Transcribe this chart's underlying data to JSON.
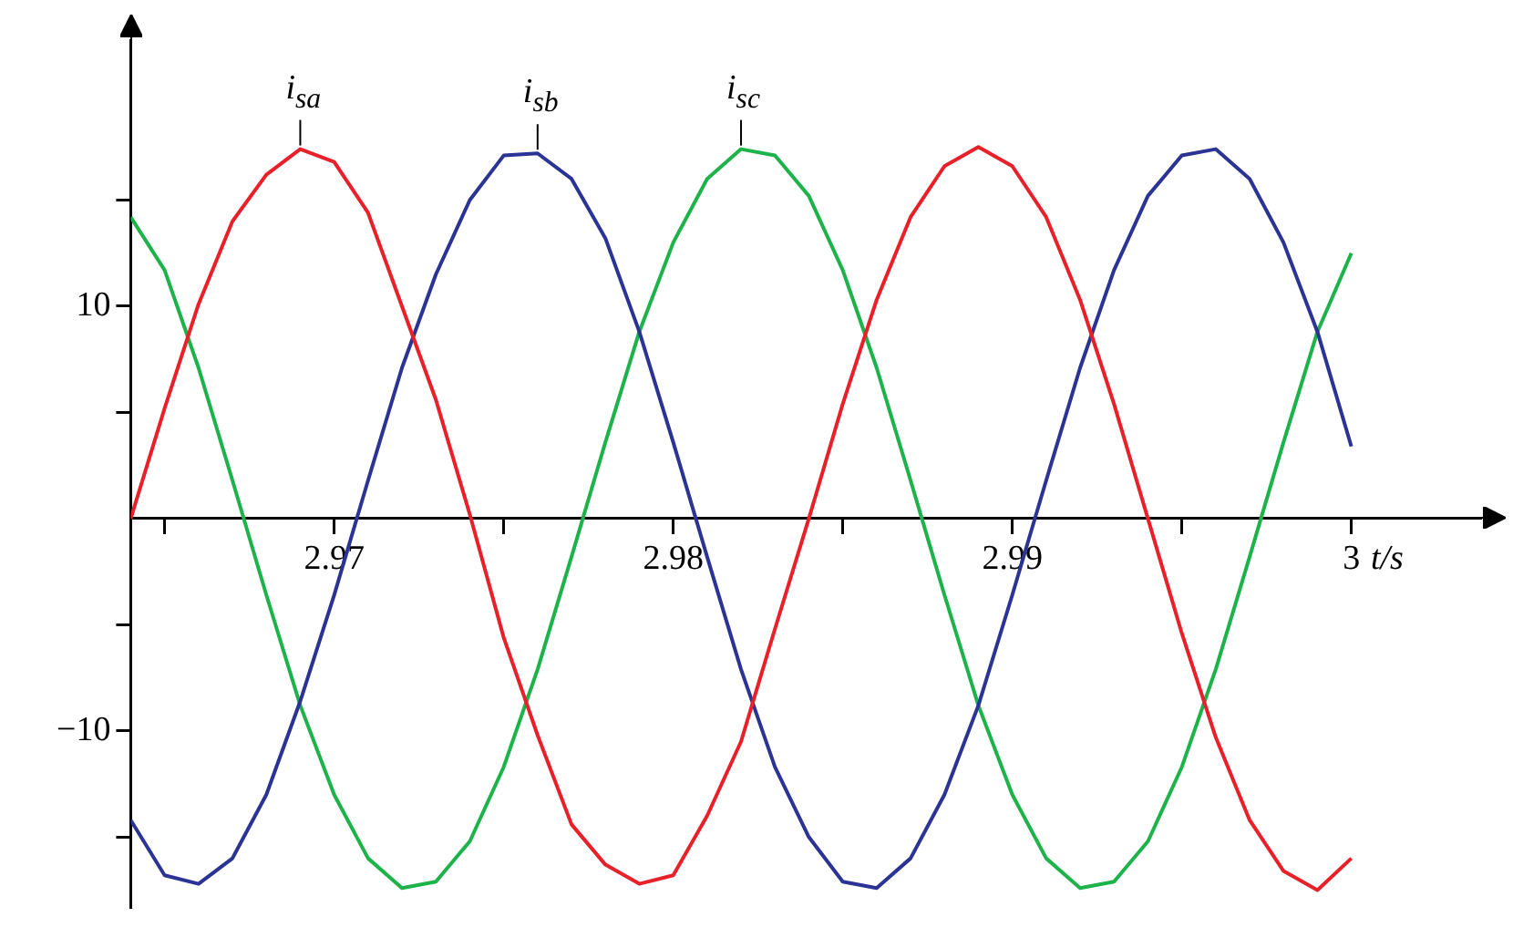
{
  "chart_data": {
    "type": "line",
    "xlabel": "t/s",
    "x": [
      2.964,
      2.965,
      2.966,
      2.967,
      2.968,
      2.969,
      2.97,
      2.971,
      2.972,
      2.973,
      2.974,
      2.975,
      2.976,
      2.977,
      2.978,
      2.979,
      2.98,
      2.981,
      2.982,
      2.983,
      2.984,
      2.985,
      2.986,
      2.987,
      2.988,
      2.989,
      2.99,
      2.991,
      2.992,
      2.993,
      2.994,
      2.995,
      2.996,
      2.997,
      2.998,
      2.999,
      3.0
    ],
    "series": [
      {
        "name": "i$_{sa}$",
        "color": "#e8202a",
        "values": [
          0,
          5.2,
          10.1,
          14.0,
          16.2,
          17.4,
          16.8,
          14.4,
          10.0,
          5.6,
          0.2,
          -5.6,
          -10.2,
          -14.4,
          -16.3,
          -17.2,
          -16.8,
          -14.0,
          -10.5,
          -5.2,
          0,
          5.4,
          10.3,
          14.2,
          16.6,
          17.5,
          16.6,
          14.2,
          10.3,
          5.4,
          0,
          -5.4,
          -10.3,
          -14.2,
          -16.6,
          -17.5,
          -16.0
        ]
      },
      {
        "name": "i$_{sb}$",
        "color": "#2b3494",
        "values": [
          -14.2,
          -16.8,
          -17.2,
          -16.0,
          -13.0,
          -8.6,
          -3.6,
          1.8,
          7.1,
          11.5,
          15.0,
          17.1,
          17.2,
          16.0,
          13.2,
          8.8,
          3.6,
          -1.8,
          -7.1,
          -11.7,
          -15.0,
          -17.1,
          -17.4,
          -16.0,
          -13.0,
          -8.8,
          -3.6,
          1.8,
          7.1,
          11.7,
          15.2,
          17.1,
          17.4,
          16.0,
          13.0,
          8.8,
          3.4
        ]
      },
      {
        "name": "i$_{sc}$",
        "color": "#1db34a",
        "values": [
          14.2,
          11.7,
          7.1,
          1.8,
          -3.6,
          -8.8,
          -13.0,
          -16.0,
          -17.4,
          -17.1,
          -15.2,
          -11.7,
          -7.1,
          -1.8,
          3.6,
          8.8,
          13.0,
          16.0,
          17.4,
          17.1,
          15.2,
          11.7,
          7.1,
          1.8,
          -3.6,
          -8.8,
          -13.0,
          -16.0,
          -17.4,
          -17.1,
          -15.2,
          -11.7,
          -7.1,
          -1.8,
          3.6,
          8.8,
          12.5
        ]
      }
    ],
    "xlim": [
      2.964,
      3.0038
    ],
    "ylim": [
      -18.3,
      22.5
    ],
    "xticks": [
      {
        "value": 2.965,
        "label": null
      },
      2.97,
      {
        "value": 2.975,
        "label": null
      },
      2.98,
      {
        "value": 2.985,
        "label": null
      },
      2.99,
      {
        "value": 2.995,
        "label": null
      },
      3
    ],
    "yticks": [
      {
        "value": -15,
        "label": null
      },
      {
        "value": -10,
        "label": "−10"
      },
      {
        "value": -5,
        "label": null
      },
      {
        "value": 5,
        "label": null
      },
      10,
      {
        "value": 15,
        "label": null
      }
    ],
    "grid": false,
    "legend": false,
    "marker": "none",
    "line_style": "solid"
  }
}
